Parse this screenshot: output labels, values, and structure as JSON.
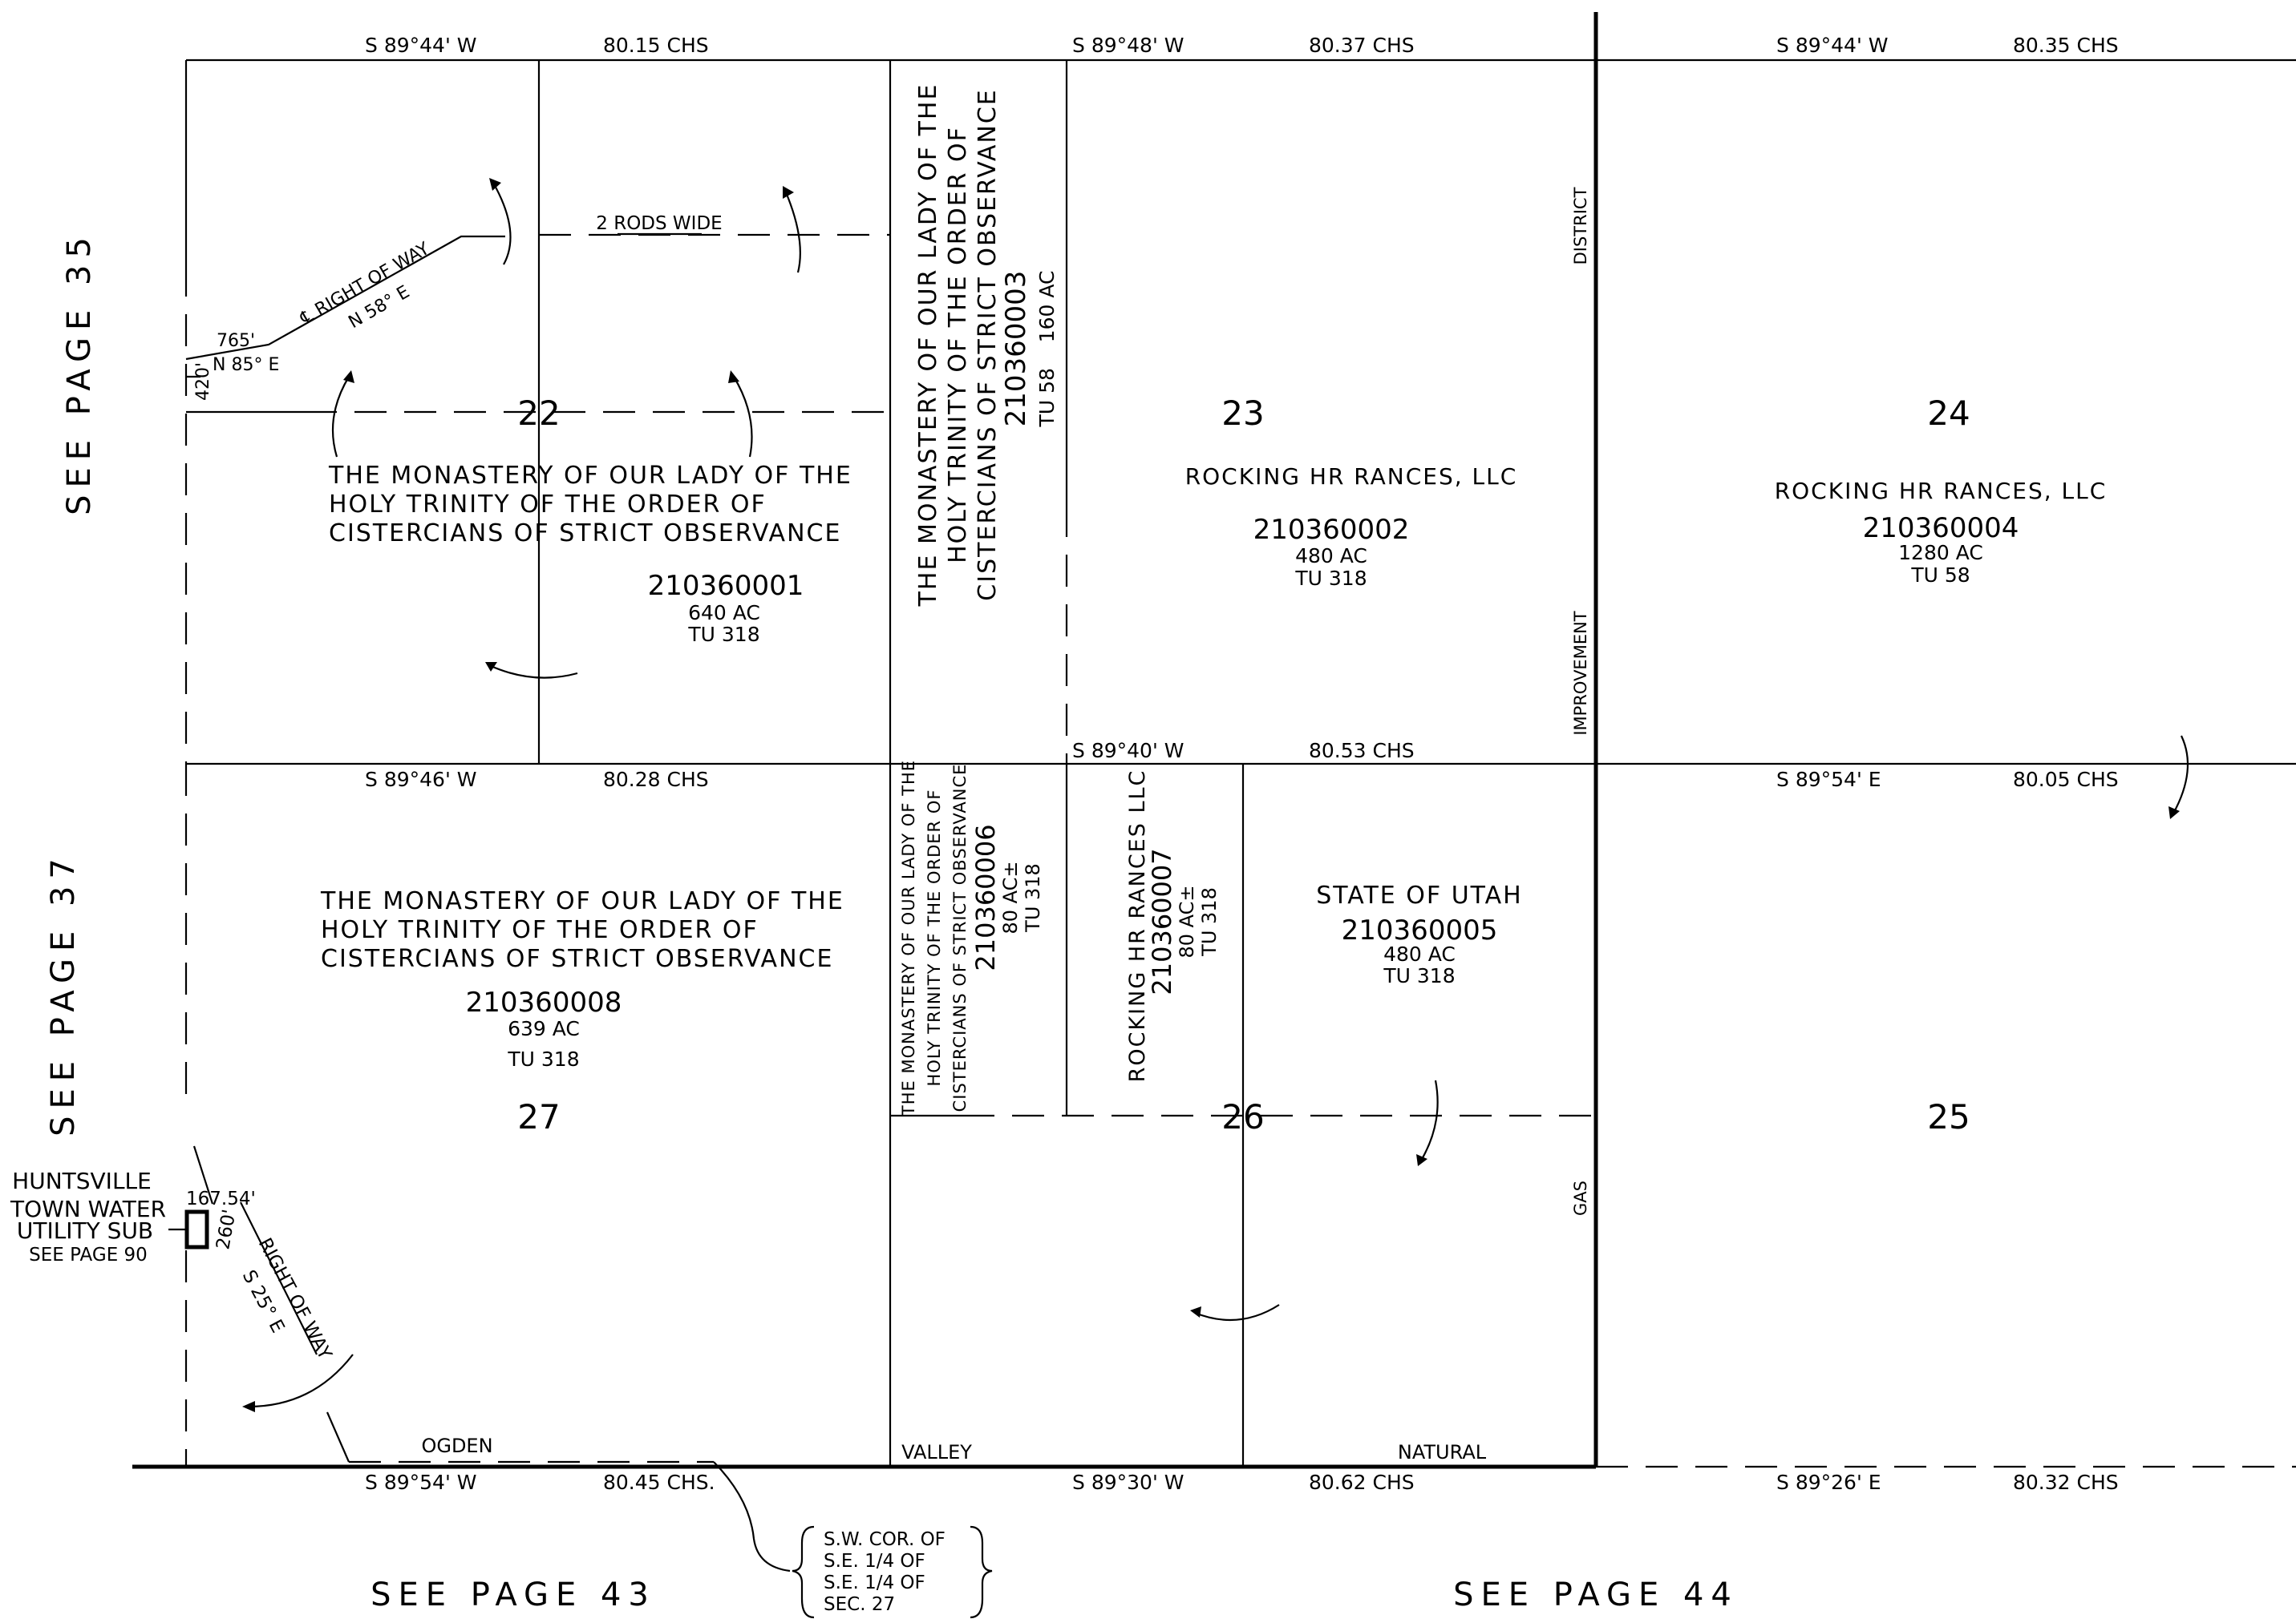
{
  "see_pages": {
    "page_35": "SEE PAGE 35",
    "page_37": "SEE PAGE 37",
    "page_43": "SEE PAGE 43",
    "page_44": "SEE PAGE 44"
  },
  "bearings": {
    "top_a": "S 89°44' W",
    "top_a_len": "80.15 CHS",
    "top_b": "S 89°48' W",
    "top_b_len": "80.37 CHS",
    "top_c": "S 89°44' W",
    "top_c_len": "80.35 CHS",
    "mid_a": "S 89°46' W",
    "mid_a_len": "80.28 CHS",
    "mid_b": "S 89°40' W",
    "mid_b_len": "80.53 CHS",
    "mid_c": "S 89°54' E",
    "mid_c_len": "80.05 CHS",
    "bot_a": "S 89°54' W",
    "bot_a_len": "80.45 CHS.",
    "bot_b": "S 89°30' W",
    "bot_b_len": "80.62 CHS",
    "bot_c": "S 89°26' E",
    "bot_c_len": "80.32 CHS"
  },
  "sections": {
    "s22": "22",
    "s23": "23",
    "s24": "24",
    "s25": "25",
    "s26": "26",
    "s27": "27"
  },
  "parcels": {
    "p1": {
      "owner_line1": "THE MONASTERY OF OUR LADY OF THE",
      "owner_line2": "HOLY TRINITY OF THE ORDER OF",
      "owner_line3": "CISTERCIANS OF STRICT OBSERVANCE",
      "id": "210360001",
      "area": "640 AC",
      "tu": "TU 318"
    },
    "p2": {
      "owner": "ROCKING HR RANCES, LLC",
      "id": "210360002",
      "area": "480 AC",
      "tu": "TU 318"
    },
    "p3": {
      "owner_line1": "THE MONASTERY OF OUR LADY OF THE",
      "owner_line2": "HOLY TRINITY OF THE ORDER OF",
      "owner_line3": "CISTERCIANS OF STRICT OBSERVANCE",
      "id": "210360003",
      "area_tu": "TU 58    160 AC"
    },
    "p4": {
      "owner": "ROCKING HR RANCES, LLC",
      "id": "210360004",
      "area": "1280 AC",
      "tu": "TU 58"
    },
    "p5": {
      "owner": "STATE OF UTAH",
      "id": "210360005",
      "area": "480 AC",
      "tu": "TU 318"
    },
    "p6": {
      "owner_line1": "THE MONASTERY OF OUR LADY OF THE",
      "owner_line2": "HOLY TRINITY OF THE ORDER OF",
      "owner_line3": "CISTERCIANS OF STRICT OBSERVANCE",
      "id": "210360006",
      "area": "80 AC±",
      "tu": "TU 318"
    },
    "p7": {
      "owner": "ROCKING HR RANCES LLC",
      "id": "210360007",
      "area": "80 AC±",
      "tu": "TU 318"
    },
    "p8": {
      "owner_line1": "THE MONASTERY OF OUR LADY OF THE",
      "owner_line2": "HOLY TRINITY OF THE ORDER OF",
      "owner_line3": "CISTERCIANS OF STRICT OBSERVANCE",
      "id": "210360008",
      "area": "639 AC",
      "tu": "TU 318"
    }
  },
  "annotations": {
    "rods_wide": "2 RODS WIDE",
    "row_top": "℄ RIGHT OF WAY",
    "row_top_bearing": "N 58° E",
    "dist_765": "765'",
    "bearing_n85": "N 85° E",
    "dist_420": "420'",
    "district": "DISTRICT",
    "improvement": "IMPROVEMENT",
    "gas": "GAS",
    "ogden": "OGDEN",
    "valley": "VALLEY",
    "natural": "NATURAL",
    "huntsville_1": "HUNTSVILLE",
    "huntsville_2": "TOWN WATER",
    "huntsville_3": "UTILITY SUB",
    "huntsville_4": "SEE PAGE 90",
    "dist_167": "167.54'",
    "dist_260": "260'",
    "row_bottom": "RIGHT OF WAY",
    "row_bottom_bearing": "S 25° E",
    "corner_1": "S.W. COR. OF",
    "corner_2": "S.E. 1/4 OF",
    "corner_3": "S.E. 1/4 OF",
    "corner_4": "SEC. 27"
  }
}
